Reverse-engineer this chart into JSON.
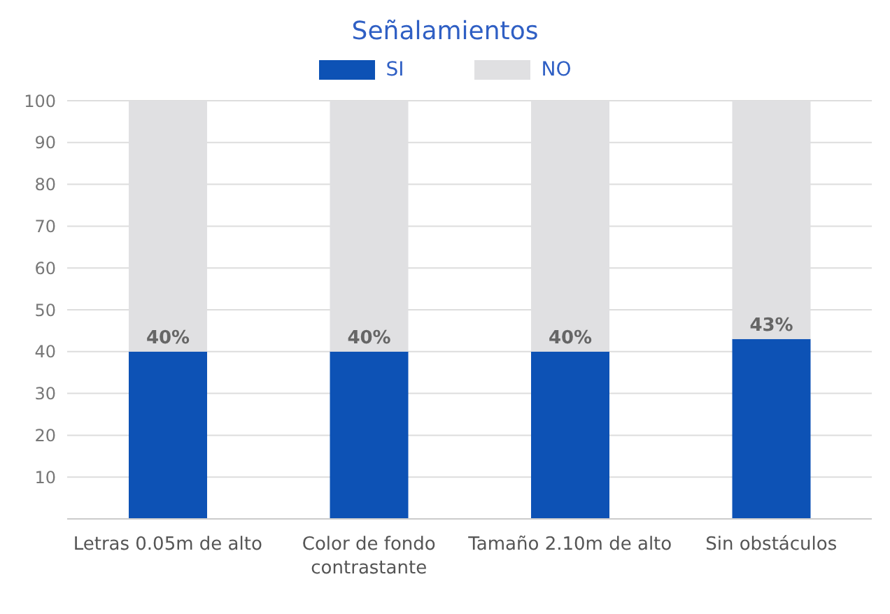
{
  "chart_data": {
    "type": "bar",
    "title": "Señalamientos",
    "stacked": true,
    "categories": [
      "Letras 0.05m de alto",
      "Color de fondo contrastante",
      "Tamaño 2.10m de alto",
      "Sin obstáculos"
    ],
    "series": [
      {
        "name": "SI",
        "color": "#0d52b5",
        "values": [
          40,
          40,
          40,
          43
        ],
        "value_labels": [
          "40%",
          "40%",
          "40%",
          "43%"
        ]
      },
      {
        "name": "NO",
        "color": "#e0e0e2",
        "values": [
          60,
          60,
          60,
          57
        ]
      }
    ],
    "ylim": [
      0,
      100
    ],
    "yticks": [
      {
        "value": 0,
        "label": null
      },
      10,
      20,
      30,
      40,
      50,
      60,
      70,
      80,
      90,
      100
    ],
    "grid": "y",
    "legend": "top"
  }
}
